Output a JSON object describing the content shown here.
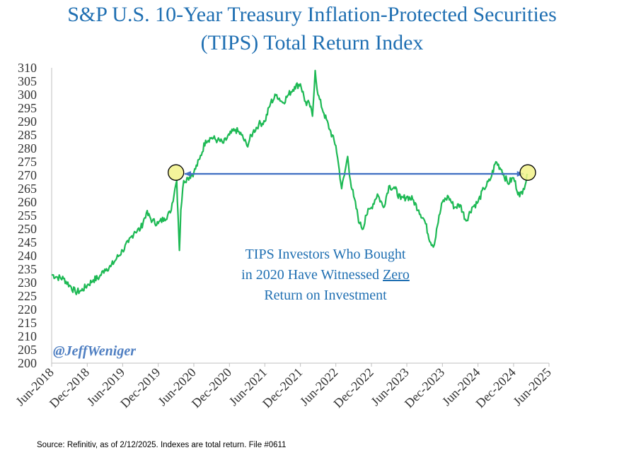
{
  "title_line_1": "S&P U.S. 10-Year Treasury Inflation-Protected Securities",
  "title_line_2": "(TIPS) Total Return Index",
  "annotation": {
    "line_1": "TIPS Investors Who Bought",
    "line_2_prefix": "in 2020 Have Witnessed ",
    "line_2_emphasis": "Zero",
    "line_3": "Return on Investment"
  },
  "watermark": "@JeffWeniger",
  "source": "Source: Refinitiv, as of 2/12/2025. Indexes are total return. File #0611",
  "colors": {
    "title": "#1f6fb2",
    "line": "#1db954",
    "arrow": "#4472c4",
    "highlight_fill": "#f2f28a",
    "watermark": "#4f7fc2"
  },
  "chart_data": {
    "type": "line",
    "title": "S&P U.S. 10-Year Treasury Inflation-Protected Securities (TIPS) Total Return Index",
    "xlabel": "",
    "ylabel": "",
    "x_type": "date",
    "xlim": [
      "2018-06-01",
      "2025-06-01"
    ],
    "ylim": [
      200,
      310
    ],
    "ytick_step": 5,
    "yticks": [
      "200",
      "205",
      "210",
      "215",
      "220",
      "225",
      "230",
      "235",
      "240",
      "245",
      "250",
      "255",
      "260",
      "265",
      "270",
      "275",
      "280",
      "285",
      "290",
      "295",
      "300",
      "305",
      "310"
    ],
    "xticks": [
      {
        "date": "2018-06-01",
        "label": "Jun-2018"
      },
      {
        "date": "2018-12-01",
        "label": "Dec-2018"
      },
      {
        "date": "2019-06-01",
        "label": "Jun-2019"
      },
      {
        "date": "2019-12-01",
        "label": "Dec-2019"
      },
      {
        "date": "2020-06-01",
        "label": "Jun-2020"
      },
      {
        "date": "2020-12-01",
        "label": "Dec-2020"
      },
      {
        "date": "2021-06-01",
        "label": "Jun-2021"
      },
      {
        "date": "2021-12-01",
        "label": "Dec-2021"
      },
      {
        "date": "2022-06-01",
        "label": "Jun-2022"
      },
      {
        "date": "2022-12-01",
        "label": "Dec-2022"
      },
      {
        "date": "2023-06-01",
        "label": "Jun-2023"
      },
      {
        "date": "2023-12-01",
        "label": "Dec-2023"
      },
      {
        "date": "2024-06-01",
        "label": "Jun-2024"
      },
      {
        "date": "2024-12-01",
        "label": "Dec-2024"
      },
      {
        "date": "2025-06-01",
        "label": "Jun-2025"
      }
    ],
    "grid": false,
    "series": [
      {
        "points": [
          [
            "2018-06-01",
            233
          ],
          [
            "2018-07-01",
            232
          ],
          [
            "2018-08-01",
            231.5
          ],
          [
            "2018-09-01",
            229
          ],
          [
            "2018-10-01",
            226.5
          ],
          [
            "2018-11-01",
            227
          ],
          [
            "2018-12-01",
            229
          ],
          [
            "2019-01-01",
            231
          ],
          [
            "2019-02-01",
            232
          ],
          [
            "2019-03-01",
            235
          ],
          [
            "2019-04-01",
            236
          ],
          [
            "2019-05-01",
            239
          ],
          [
            "2019-06-01",
            242
          ],
          [
            "2019-07-01",
            245
          ],
          [
            "2019-08-01",
            249
          ],
          [
            "2019-09-01",
            250
          ],
          [
            "2019-10-01",
            256
          ],
          [
            "2019-11-01",
            253
          ],
          [
            "2019-12-01",
            252
          ],
          [
            "2020-01-01",
            254
          ],
          [
            "2020-02-01",
            256
          ],
          [
            "2020-02-25",
            265
          ],
          [
            "2020-03-05",
            268
          ],
          [
            "2020-03-12",
            255
          ],
          [
            "2020-03-19",
            242
          ],
          [
            "2020-03-26",
            257
          ],
          [
            "2020-04-10",
            268
          ],
          [
            "2020-05-01",
            269
          ],
          [
            "2020-06-01",
            271
          ],
          [
            "2020-07-01",
            276
          ],
          [
            "2020-08-01",
            283
          ],
          [
            "2020-09-01",
            284
          ],
          [
            "2020-10-01",
            283
          ],
          [
            "2020-11-01",
            282
          ],
          [
            "2020-12-01",
            285
          ],
          [
            "2021-01-01",
            287
          ],
          [
            "2021-02-01",
            285
          ],
          [
            "2021-03-01",
            281
          ],
          [
            "2021-04-01",
            286
          ],
          [
            "2021-05-01",
            289
          ],
          [
            "2021-06-01",
            290
          ],
          [
            "2021-07-01",
            297
          ],
          [
            "2021-08-01",
            300
          ],
          [
            "2021-09-01",
            297
          ],
          [
            "2021-10-01",
            300
          ],
          [
            "2021-11-01",
            303
          ],
          [
            "2021-12-01",
            304
          ],
          [
            "2022-01-01",
            296
          ],
          [
            "2022-01-15",
            297
          ],
          [
            "2022-02-01",
            292
          ],
          [
            "2022-02-15",
            309
          ],
          [
            "2022-03-01",
            300
          ],
          [
            "2022-04-01",
            293
          ],
          [
            "2022-05-01",
            287
          ],
          [
            "2022-06-01",
            281
          ],
          [
            "2022-06-15",
            274
          ],
          [
            "2022-07-01",
            265
          ],
          [
            "2022-07-15",
            270
          ],
          [
            "2022-08-01",
            277
          ],
          [
            "2022-08-15",
            268
          ],
          [
            "2022-09-01",
            262
          ],
          [
            "2022-10-01",
            252
          ],
          [
            "2022-10-20",
            250
          ],
          [
            "2022-11-01",
            255
          ],
          [
            "2022-12-01",
            258
          ],
          [
            "2023-01-01",
            263
          ],
          [
            "2023-02-01",
            258
          ],
          [
            "2023-03-01",
            266
          ],
          [
            "2023-04-01",
            265
          ],
          [
            "2023-05-01",
            261
          ],
          [
            "2023-06-01",
            262
          ],
          [
            "2023-07-01",
            261
          ],
          [
            "2023-08-01",
            257
          ],
          [
            "2023-09-01",
            253
          ],
          [
            "2023-10-01",
            245
          ],
          [
            "2023-10-20",
            244
          ],
          [
            "2023-11-01",
            250
          ],
          [
            "2023-12-01",
            260
          ],
          [
            "2024-01-01",
            262
          ],
          [
            "2024-02-01",
            258
          ],
          [
            "2024-03-01",
            259
          ],
          [
            "2024-04-01",
            253
          ],
          [
            "2024-05-01",
            258
          ],
          [
            "2024-06-01",
            260
          ],
          [
            "2024-07-01",
            265
          ],
          [
            "2024-08-01",
            268
          ],
          [
            "2024-09-01",
            275
          ],
          [
            "2024-10-01",
            272
          ],
          [
            "2024-11-01",
            267
          ],
          [
            "2024-12-01",
            269
          ],
          [
            "2025-01-01",
            262
          ],
          [
            "2025-01-20",
            265
          ],
          [
            "2025-02-12",
            270
          ]
        ]
      }
    ],
    "markers": [
      {
        "date": "2020-03-01",
        "value": 271
      },
      {
        "date": "2025-02-12",
        "value": 271
      }
    ],
    "reference_arrow": {
      "from_date": "2020-04-15",
      "to_date": "2025-01-20",
      "value": 270.5
    }
  }
}
